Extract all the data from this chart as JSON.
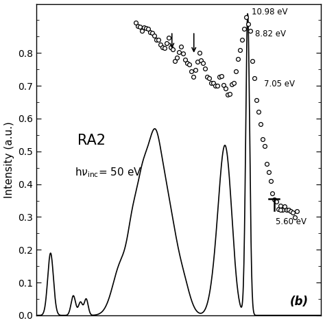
{
  "ylabel": "Intensity (a.u.)",
  "ylim": [
    0.0,
    0.95
  ],
  "yticks": [
    0.0,
    0.1,
    0.2,
    0.3,
    0.4,
    0.5,
    0.6,
    0.7,
    0.8
  ],
  "annotation_10_98": "10.98 eV",
  "annotation_8_82": "8.82 eV",
  "annotation_7_05": "7.05 eV",
  "annotation_5_60": "5.60 eV",
  "label_RA2": "RA2",
  "label_b": "(b)",
  "bg_color": "#ffffff",
  "line_color": "#000000",
  "circle_color": "#000000"
}
